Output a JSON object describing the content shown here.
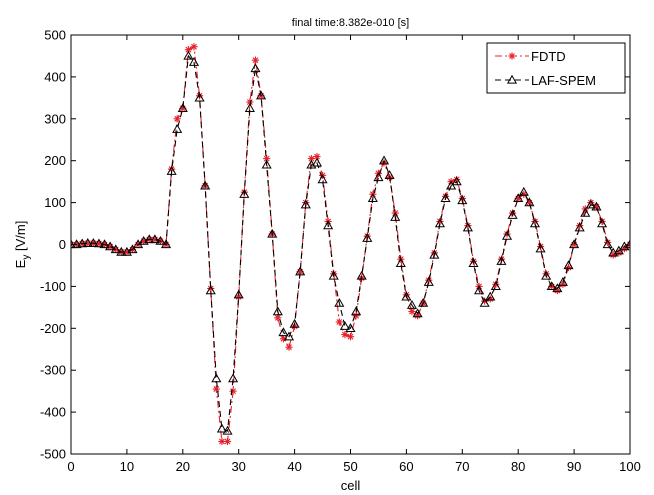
{
  "chart_data": {
    "type": "line",
    "title": "final time:8.382e-010 [s]",
    "xlabel": "cell",
    "ylabel_main": "E",
    "ylabel_sub": "y",
    "ylabel_unit": " [V/m]",
    "xlim": [
      0,
      100
    ],
    "ylim": [
      -500,
      500
    ],
    "xticks": [
      0,
      10,
      20,
      30,
      40,
      50,
      60,
      70,
      80,
      90,
      100
    ],
    "yticks": [
      500,
      400,
      300,
      200,
      100,
      0,
      -100,
      -200,
      -300,
      -400,
      -500
    ],
    "grid": false,
    "legend_position": "top-right",
    "x": [
      0,
      1,
      2,
      3,
      4,
      5,
      6,
      7,
      8,
      9,
      10,
      11,
      12,
      13,
      14,
      15,
      16,
      17,
      18,
      19,
      20,
      21,
      22,
      23,
      24,
      25,
      26,
      27,
      28,
      29,
      30,
      31,
      32,
      33,
      34,
      35,
      36,
      37,
      38,
      39,
      40,
      41,
      42,
      43,
      44,
      45,
      46,
      47,
      48,
      49,
      50,
      51,
      52,
      53,
      54,
      55,
      56,
      57,
      58,
      59,
      60,
      61,
      62,
      63,
      64,
      65,
      66,
      67,
      68,
      69,
      70,
      71,
      72,
      73,
      74,
      75,
      76,
      77,
      78,
      79,
      80,
      81,
      82,
      83,
      84,
      85,
      86,
      87,
      88,
      89,
      90,
      91,
      92,
      93,
      94,
      95,
      96,
      97,
      98,
      99,
      100
    ],
    "series": [
      {
        "name": "FDTD",
        "color": "#e8202a",
        "marker": "asterisk",
        "dash": "dashdot",
        "values": [
          0,
          0,
          2,
          3,
          3,
          2,
          0,
          -5,
          -12,
          -18,
          -18,
          -12,
          0,
          8,
          12,
          12,
          8,
          0,
          180,
          300,
          325,
          465,
          472,
          355,
          140,
          -105,
          -345,
          -470,
          -470,
          -350,
          -125,
          125,
          340,
          440,
          355,
          205,
          25,
          -175,
          -225,
          -245,
          -195,
          -65,
          100,
          205,
          210,
          165,
          55,
          -70,
          -185,
          -215,
          -220,
          -170,
          -80,
          20,
          120,
          170,
          195,
          160,
          75,
          -35,
          -120,
          -160,
          -170,
          -140,
          -85,
          -20,
          55,
          115,
          150,
          155,
          110,
          45,
          -40,
          -100,
          -135,
          -130,
          -95,
          -35,
          25,
          75,
          110,
          120,
          100,
          55,
          -5,
          -70,
          -100,
          -110,
          -95,
          -55,
          0,
          45,
          85,
          100,
          90,
          55,
          5,
          -25,
          -20,
          -10,
          0
        ]
      },
      {
        "name": "LAF-SPEM",
        "color": "#000000",
        "marker": "triangle",
        "dash": "dash",
        "values": [
          0,
          0,
          2,
          3,
          3,
          2,
          0,
          -5,
          -12,
          -18,
          -18,
          -12,
          0,
          8,
          12,
          12,
          8,
          0,
          175,
          275,
          325,
          450,
          435,
          350,
          140,
          -110,
          -320,
          -440,
          -445,
          -320,
          -120,
          120,
          325,
          420,
          355,
          190,
          25,
          -160,
          -210,
          -220,
          -190,
          -65,
          95,
          190,
          195,
          155,
          45,
          -75,
          -140,
          -195,
          -200,
          -160,
          -75,
          15,
          110,
          160,
          200,
          165,
          65,
          -45,
          -125,
          -145,
          -165,
          -140,
          -90,
          -25,
          50,
          110,
          140,
          150,
          105,
          40,
          -45,
          -110,
          -140,
          -125,
          -100,
          -40,
          20,
          70,
          110,
          125,
          100,
          50,
          -10,
          -75,
          -100,
          -105,
          -90,
          -50,
          0,
          40,
          75,
          95,
          90,
          50,
          0,
          -20,
          -15,
          -5,
          0
        ]
      }
    ]
  }
}
